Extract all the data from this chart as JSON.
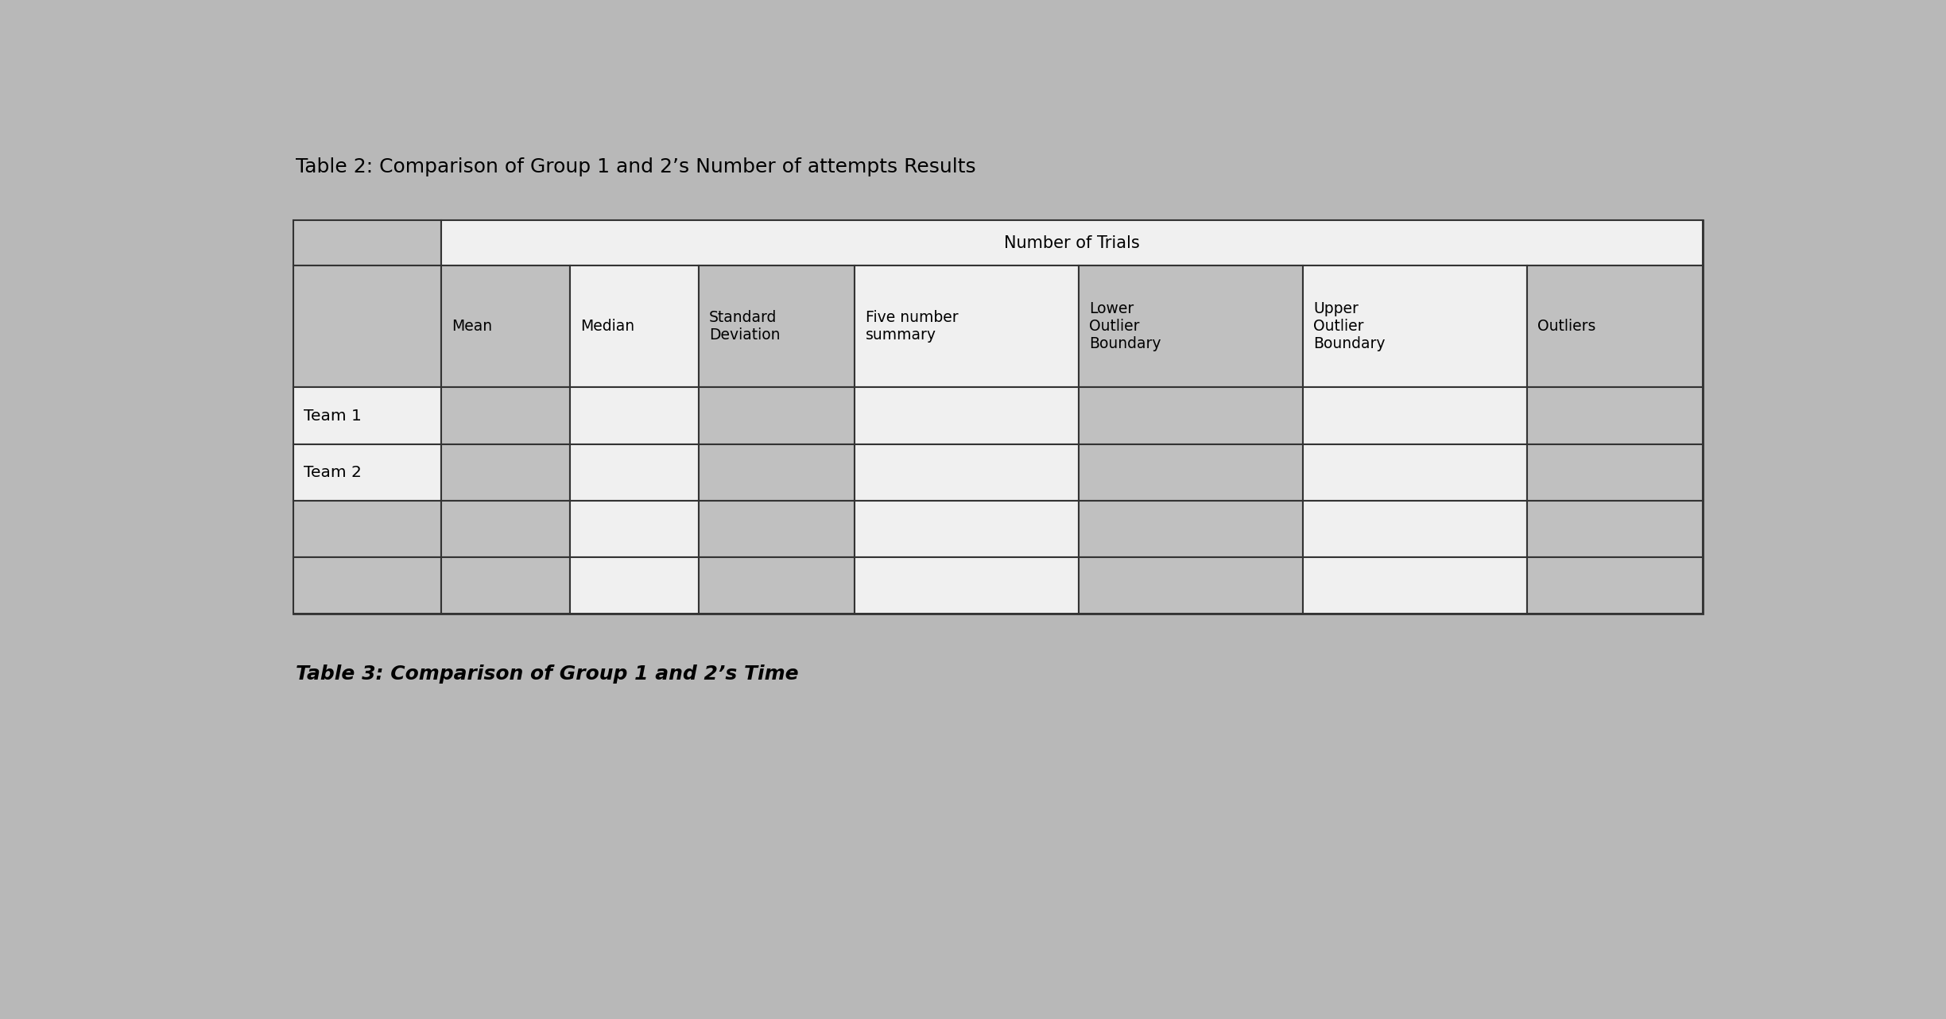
{
  "title": "Table 2: Comparison of Group 1 and 2’s Number of attempts Results",
  "title_fontsize": 18,
  "background_color": "#b8b8b8",
  "header_span_text": "Number of Trials",
  "col_headers": [
    "Mean",
    "Median",
    "Standard\nDeviation",
    "Five number\nsummary",
    "Lower\nOutlier\nBoundary",
    "Upper\nOutlier\nBoundary",
    "Outliers"
  ],
  "row_labels": [
    "Team 1",
    "Team 2",
    "",
    ""
  ],
  "subtitle_text": "Table 3: Comparison of Group 1 and 2’s Time",
  "subtitle_fontsize": 18,
  "gray_cell": "#c0c0c0",
  "white_cell": "#f0f0f0",
  "dark_gray_cell": "#a8a8a8"
}
